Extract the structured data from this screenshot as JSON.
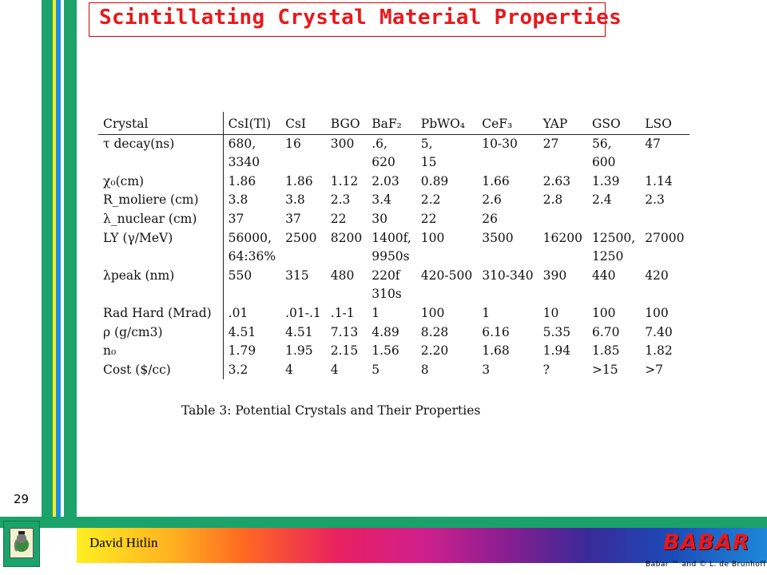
{
  "title": "Scintillating Crystal Material Properties",
  "slide_number": "29",
  "footer": {
    "author": "David Hitlin",
    "logo": "BABAR",
    "copyright": "Babar ™ and © L. de Brunhoff",
    "logo_icon": "babar-elephant-icon"
  },
  "table": {
    "headers": [
      "Crystal",
      "CsI(Tl)",
      "CsI",
      "BGO",
      "BaF₂",
      "PbWO₄",
      "CeF₃",
      "YAP",
      "GSO",
      "LSO"
    ],
    "rows": [
      [
        "τ decay(ns)",
        "680,\n3340",
        "16",
        "300",
        ".6,\n620",
        "5,\n15",
        "10-30",
        "27",
        "56,\n600",
        "47"
      ],
      [
        "χ₀(cm)",
        "1.86",
        "1.86",
        "1.12",
        "2.03",
        "0.89",
        "1.66",
        "2.63",
        "1.39",
        "1.14"
      ],
      [
        "R_moliere (cm)",
        "3.8",
        "3.8",
        "2.3",
        "3.4",
        "2.2",
        "2.6",
        "2.8",
        "2.4",
        "2.3"
      ],
      [
        "λ_nuclear (cm)",
        "37",
        "37",
        "22",
        "30",
        "22",
        "26",
        "",
        "",
        ""
      ],
      [
        "LY (γ/MeV)",
        "56000,\n64:36%",
        "2500",
        "8200",
        "1400f,\n9950s",
        "100",
        "3500",
        "16200",
        "12500,\n1250",
        "27000"
      ],
      [
        "λpeak (nm)",
        "550",
        "315",
        "480",
        "220f\n310s",
        "420-500",
        "310-340",
        "390",
        "440",
        "420"
      ],
      [
        "Rad Hard (Mrad)",
        ".01",
        ".01-.1",
        ".1-1",
        "1",
        "100",
        "1",
        "10",
        "100",
        "100"
      ],
      [
        "ρ (g/cm3)",
        "4.51",
        "4.51",
        "7.13",
        "4.89",
        "8.28",
        "6.16",
        "5.35",
        "6.70",
        "7.40"
      ],
      [
        "n₀",
        "1.79",
        "1.95",
        "2.15",
        "1.56",
        "2.20",
        "1.68",
        "1.94",
        "1.85",
        "1.82"
      ],
      [
        "Cost ($/cc)",
        "3.2",
        "4",
        "4",
        "5",
        "8",
        "3",
        "?",
        ">15",
        ">7"
      ]
    ],
    "caption": "Table 3:  Potential Crystals and Their Properties"
  }
}
